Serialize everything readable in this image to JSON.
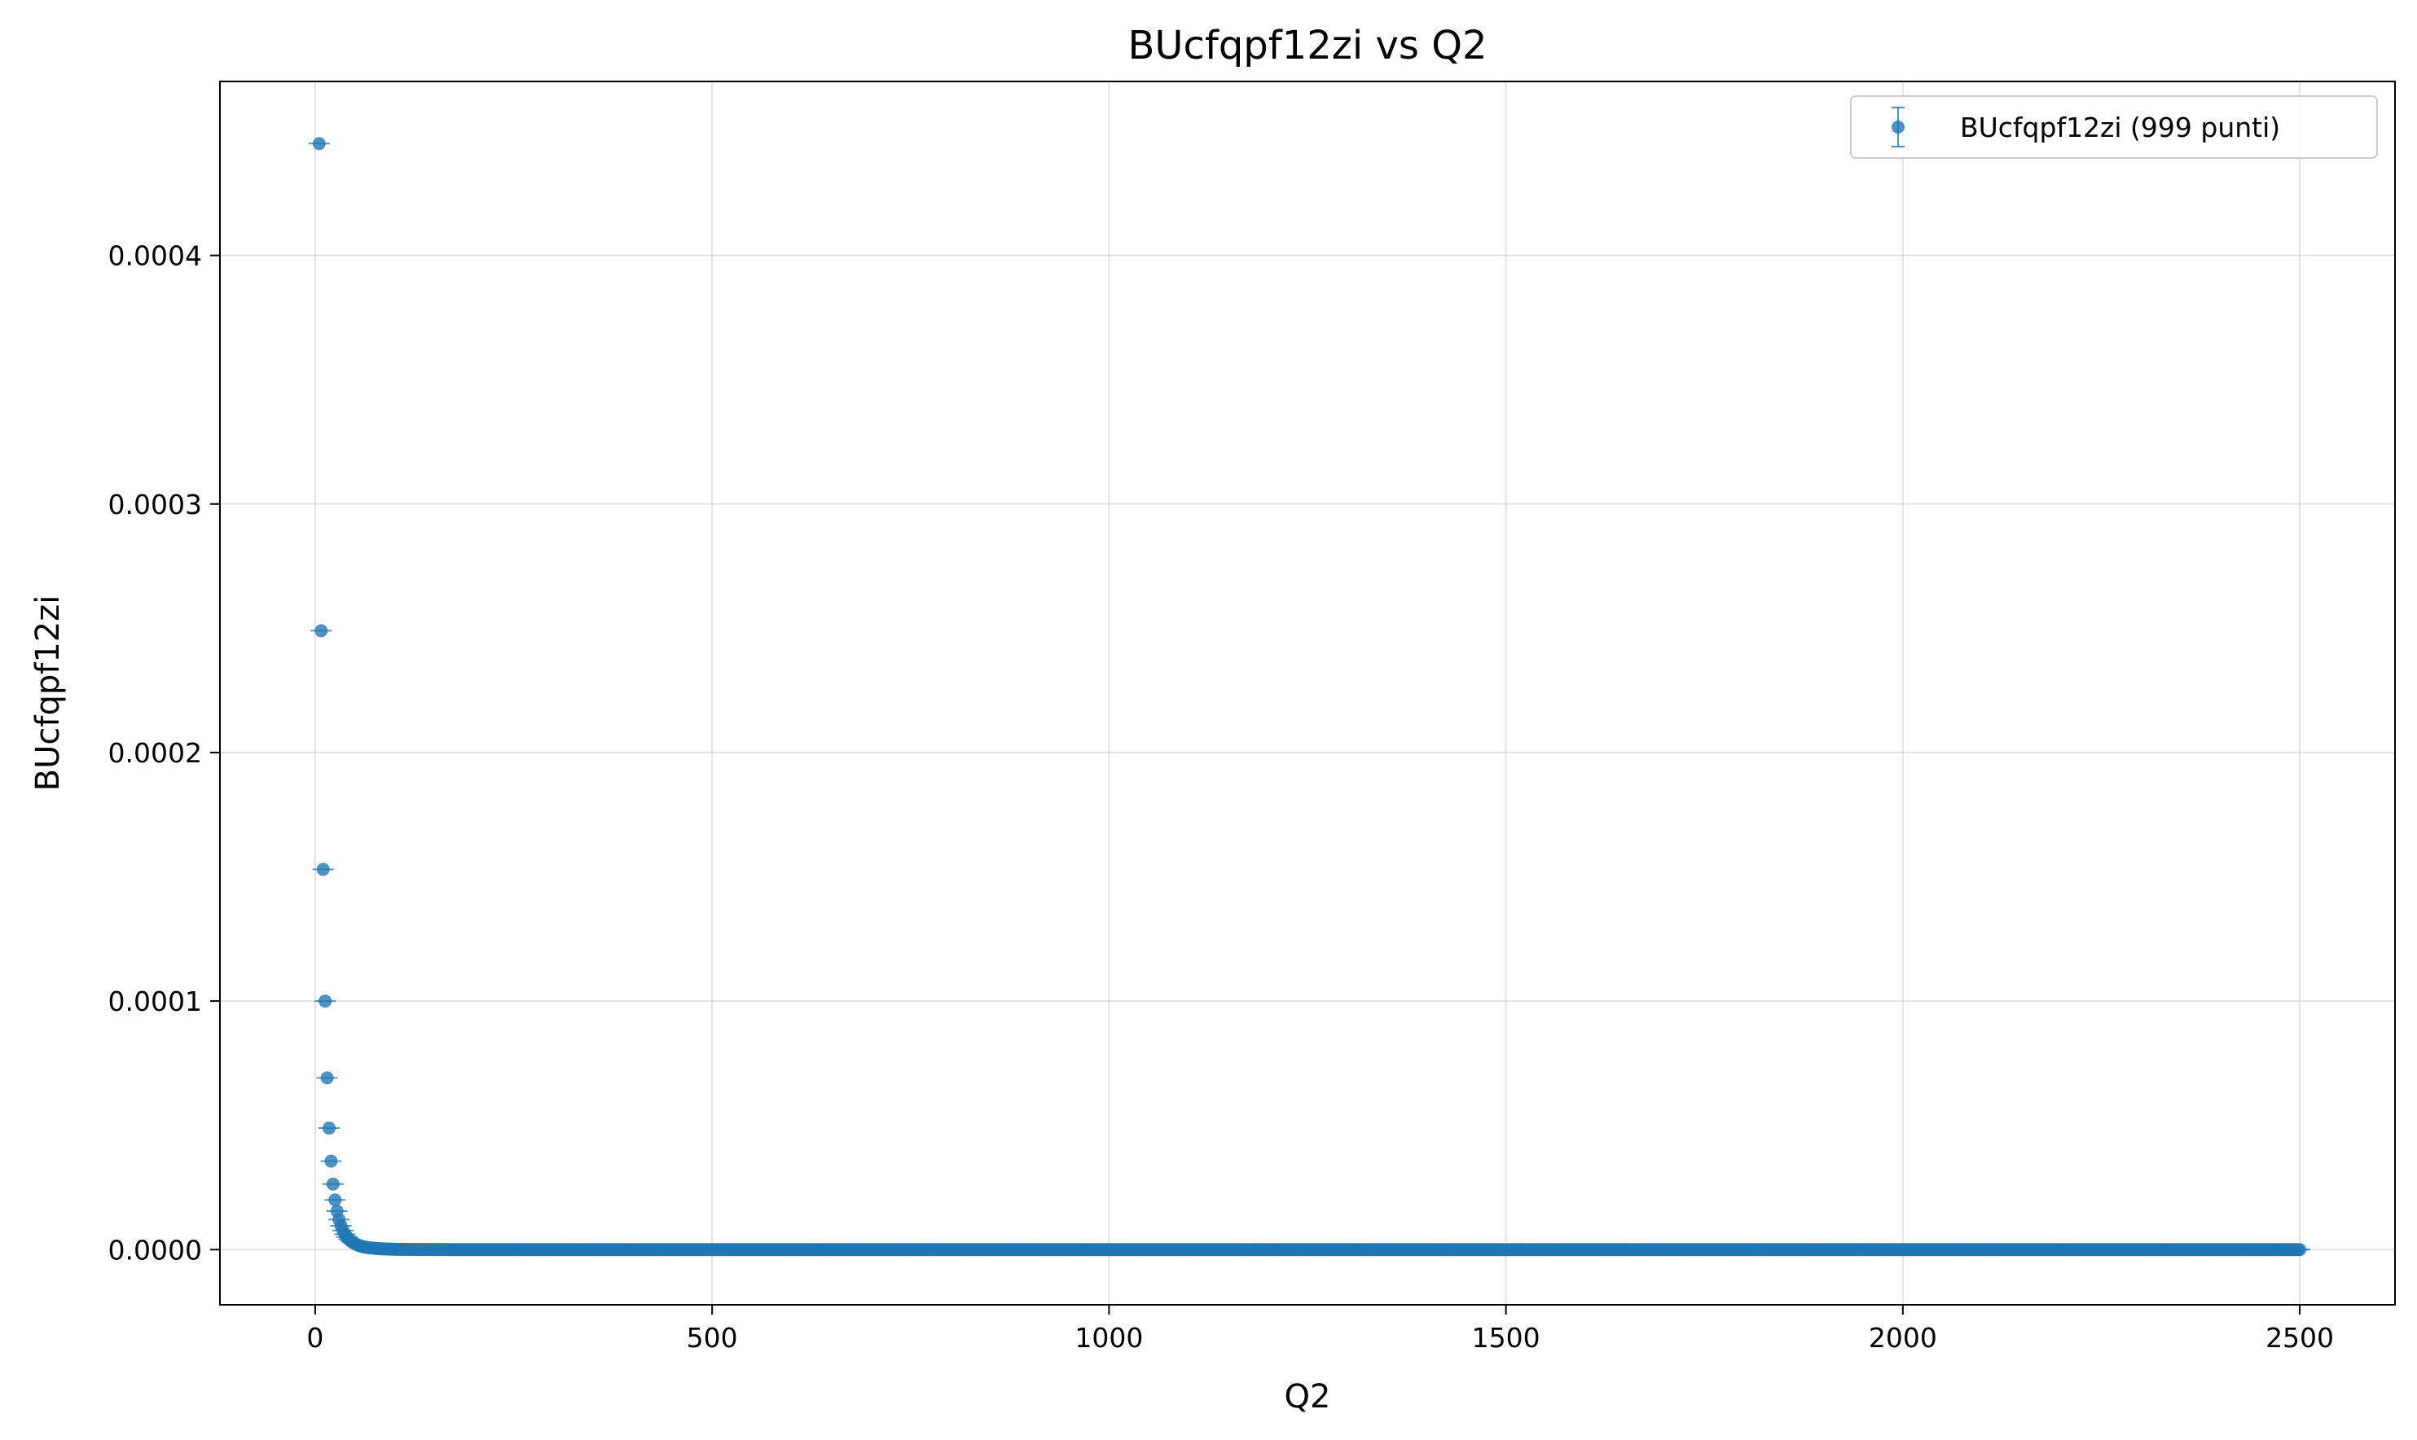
{
  "chart_data": {
    "type": "scatter",
    "title": "BUcfqpf12zi vs Q2",
    "xlabel": "Q2",
    "ylabel": "BUcfqpf12zi",
    "xlim": [
      -120,
      2620
    ],
    "ylim": [
      -2.22e-05,
      0.00047
    ],
    "x_ticks": [
      0,
      500,
      1000,
      1500,
      2000,
      2500
    ],
    "x_tick_labels": [
      "0",
      "500",
      "1000",
      "1500",
      "2000",
      "2500"
    ],
    "y_ticks": [
      0,
      0.0001,
      0.0002,
      0.0003,
      0.0004
    ],
    "y_tick_labels": [
      "0.0000",
      "0.0001",
      "0.0002",
      "0.0003",
      "0.0004"
    ],
    "grid": true,
    "legend_position": "top-right",
    "error_bars": true,
    "series": [
      {
        "name": "BUcfqpf12zi (999 punti)",
        "color": "#1f77b4",
        "marker": "circle",
        "x_start": 5,
        "x_step": 2.5,
        "count": 999,
        "x": [
          5,
          7.5,
          10,
          12.5,
          15,
          17.5,
          20,
          22.5,
          25,
          27.5,
          30,
          32.5,
          35,
          37.5,
          40,
          45,
          50,
          55,
          60,
          70,
          80,
          100,
          150,
          300,
          600,
          1000,
          1500,
          2000,
          2500
        ],
        "y": [
          0.000445,
          0.000249,
          0.000153,
          0.0001,
          6.91e-05,
          4.89e-05,
          3.56e-05,
          2.64e-05,
          2e-05,
          1.55e-05,
          1.21e-05,
          9.6e-06,
          7.7e-06,
          6.2e-06,
          5.1e-06,
          3.4e-06,
          2.4e-06,
          1.7e-06,
          1.2e-06,
          7e-07,
          4e-07,
          1.5e-07,
          3e-08,
          2e-09,
          0,
          0,
          0,
          0,
          0
        ]
      }
    ]
  }
}
